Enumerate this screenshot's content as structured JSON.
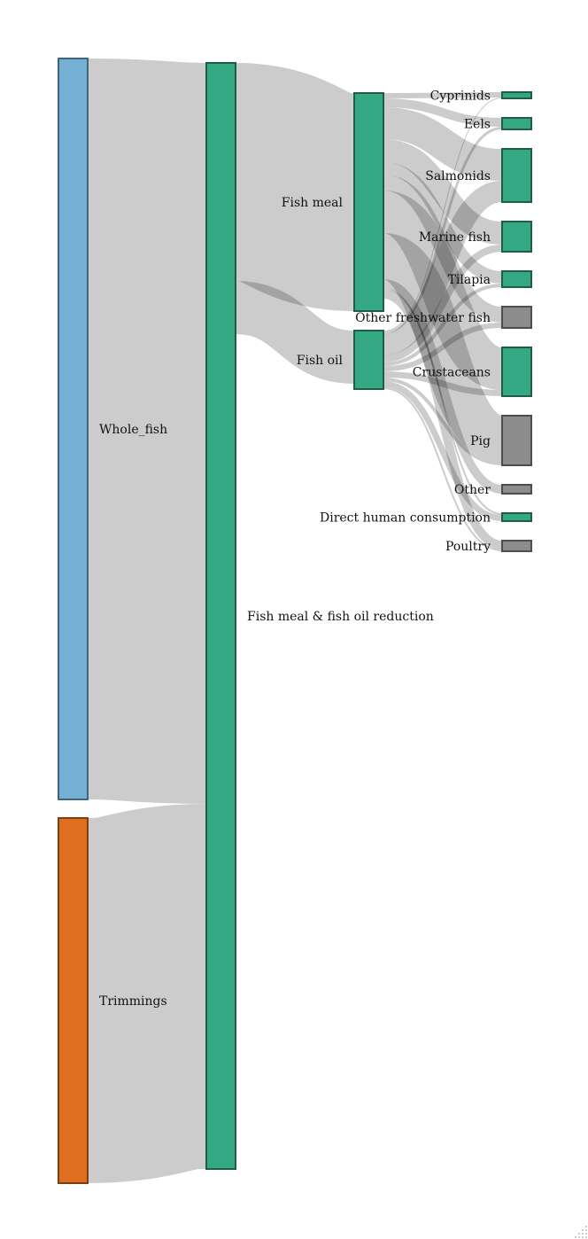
{
  "chart_data": {
    "type": "sankey",
    "nodes": [
      {
        "id": "whole_fish",
        "name": "Whole_fish",
        "column": 0,
        "label_side": "right",
        "color": "#76B1D5",
        "stroke": "#3F6680"
      },
      {
        "id": "trimmings",
        "name": "Trimmings",
        "column": 0,
        "label_side": "right",
        "color": "#DF6F1E",
        "stroke": "#7D3F12"
      },
      {
        "id": "reduction",
        "name": "Fish meal & fish oil reduction",
        "column": 1,
        "label_side": "right",
        "color": "#33A883",
        "stroke": "#1F5C49"
      },
      {
        "id": "fish_meal",
        "name": "Fish meal",
        "column": 2,
        "label_side": "left",
        "color": "#33A883",
        "stroke": "#1F5C49"
      },
      {
        "id": "fish_oil",
        "name": "Fish oil",
        "column": 2,
        "label_side": "left",
        "color": "#33A883",
        "stroke": "#1F5C49"
      },
      {
        "id": "cyprinids",
        "name": "Cyprinids",
        "column": 3,
        "label_side": "left",
        "color": "#33A883",
        "stroke": "#1F5C49"
      },
      {
        "id": "eels",
        "name": "Eels",
        "column": 3,
        "label_side": "left",
        "color": "#33A883",
        "stroke": "#1F5C49"
      },
      {
        "id": "salmonids",
        "name": "Salmonids",
        "column": 3,
        "label_side": "left",
        "color": "#33A883",
        "stroke": "#1F5C49"
      },
      {
        "id": "marine_fish",
        "name": "Marine fish",
        "column": 3,
        "label_side": "left",
        "color": "#33A883",
        "stroke": "#1F5C49"
      },
      {
        "id": "tilapia",
        "name": "Tilapia",
        "column": 3,
        "label_side": "left",
        "color": "#33A883",
        "stroke": "#1F5C49"
      },
      {
        "id": "other_fw",
        "name": "Other freshwater fish",
        "column": 3,
        "label_side": "left",
        "color": "#8C8C8C",
        "stroke": "#4D4D4D"
      },
      {
        "id": "crustaceans",
        "name": "Crustaceans",
        "column": 3,
        "label_side": "left",
        "color": "#33A883",
        "stroke": "#1F5C49"
      },
      {
        "id": "pig",
        "name": "Pig",
        "column": 3,
        "label_side": "left",
        "color": "#8C8C8C",
        "stroke": "#4D4D4D"
      },
      {
        "id": "other",
        "name": "Other",
        "column": 3,
        "label_side": "left",
        "color": "#8C8C8C",
        "stroke": "#4D4D4D"
      },
      {
        "id": "dhc",
        "name": "Direct human consumption",
        "column": 3,
        "label_side": "left",
        "color": "#33A883",
        "stroke": "#1F5C49"
      },
      {
        "id": "poultry",
        "name": "Poultry",
        "column": 3,
        "label_side": "left",
        "color": "#8C8C8C",
        "stroke": "#4D4D4D"
      }
    ],
    "links": [
      {
        "source": "whole_fish",
        "target": "reduction",
        "value": 836
      },
      {
        "source": "trimmings",
        "target": "reduction",
        "value": 412
      },
      {
        "source": "reduction",
        "target": "fish_meal",
        "value": 246
      },
      {
        "source": "reduction",
        "target": "fish_oil",
        "value": 60
      },
      {
        "source": "fish_meal",
        "target": "cyprinids",
        "value": 6
      },
      {
        "source": "fish_meal",
        "target": "eels",
        "value": 10
      },
      {
        "source": "fish_meal",
        "target": "salmonids",
        "value": 36
      },
      {
        "source": "fish_meal",
        "target": "marine_fish",
        "value": 26
      },
      {
        "source": "fish_meal",
        "target": "tilapia",
        "value": 14
      },
      {
        "source": "fish_meal",
        "target": "other_fw",
        "value": 18
      },
      {
        "source": "fish_meal",
        "target": "crustaceans",
        "value": 48
      },
      {
        "source": "fish_meal",
        "target": "pig",
        "value": 52
      },
      {
        "source": "fish_meal",
        "target": "other",
        "value": 10
      },
      {
        "source": "fish_meal",
        "target": "dhc",
        "value": 2
      },
      {
        "source": "fish_meal",
        "target": "poultry",
        "value": 10
      },
      {
        "source": "fish_oil",
        "target": "cyprinids",
        "value": 1
      },
      {
        "source": "fish_oil",
        "target": "eels",
        "value": 3
      },
      {
        "source": "fish_oil",
        "target": "salmonids",
        "value": 24
      },
      {
        "source": "fish_oil",
        "target": "marine_fish",
        "value": 8
      },
      {
        "source": "fish_oil",
        "target": "tilapia",
        "value": 4
      },
      {
        "source": "fish_oil",
        "target": "other_fw",
        "value": 6
      },
      {
        "source": "fish_oil",
        "target": "crustaceans",
        "value": 7
      },
      {
        "source": "fish_oil",
        "target": "pig",
        "value": 4
      },
      {
        "source": "fish_oil",
        "target": "dhc",
        "value": 7
      },
      {
        "source": "fish_oil",
        "target": "poultry",
        "value": 2
      }
    ],
    "columns": {
      "0": [
        "whole_fish",
        "trimmings"
      ],
      "1": [
        "reduction"
      ],
      "2": [
        "fish_meal",
        "fish_oil"
      ],
      "3": [
        "cyprinids",
        "eels",
        "salmonids",
        "marine_fish",
        "tilapia",
        "other_fw",
        "crustaceans",
        "pig",
        "other",
        "dhc",
        "poultry"
      ]
    },
    "link_color": "#000000",
    "link_opacity": 0.2
  }
}
